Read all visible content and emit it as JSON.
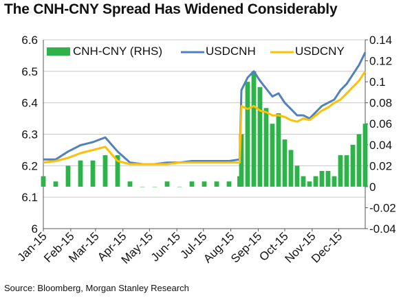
{
  "title": "The CNH-CNY Spread Has Widened Considerably",
  "source": "Source: Bloomberg, Morgan Stanley Research",
  "colors": {
    "background": "#ffffff",
    "gridline": "#c8c8c8",
    "axis": "#555555",
    "text": "#111111",
    "usdcnh": "#4f81bd",
    "usdcny": "#ffc000",
    "spread": "#2db34a"
  },
  "chart_data": {
    "type": "line",
    "title": "The CNH-CNY Spread Has Widened Considerably",
    "grid": true,
    "legend_position": "top",
    "x_tick_labels": [
      "Jan-15",
      "Feb-15",
      "Mar-15",
      "Apr-15",
      "May-15",
      "Jun-15",
      "Jul-15",
      "Aug-15",
      "Sep-15",
      "Oct-15",
      "Nov-15",
      "Dec-15"
    ],
    "y_left": {
      "min": 6.0,
      "max": 6.6,
      "ticks": [
        "6.6",
        "6.5",
        "6.4",
        "6.3",
        "6.2",
        "6.1",
        "6"
      ]
    },
    "y_right": {
      "min": -0.04,
      "max": 0.14,
      "ticks": [
        "0.14",
        "0.12",
        "0.1",
        "0.08",
        "0.06",
        "0.04",
        "0.02",
        "0",
        "-0.02",
        "-0.04"
      ]
    },
    "legend": [
      "CNH-CNY (RHS)",
      "USDCNH",
      "USDCNY"
    ],
    "dates": [
      "2015-01-01",
      "2015-01-15",
      "2015-01-29",
      "2015-02-12",
      "2015-02-26",
      "2015-03-12",
      "2015-03-26",
      "2015-04-09",
      "2015-04-23",
      "2015-05-07",
      "2015-05-21",
      "2015-06-04",
      "2015-06-18",
      "2015-07-02",
      "2015-07-16",
      "2015-07-30",
      "2015-08-11",
      "2015-08-13",
      "2015-08-20",
      "2015-08-27",
      "2015-09-03",
      "2015-09-10",
      "2015-09-17",
      "2015-09-24",
      "2015-10-01",
      "2015-10-08",
      "2015-10-15",
      "2015-10-22",
      "2015-10-29",
      "2015-11-05",
      "2015-11-12",
      "2015-11-19",
      "2015-11-26",
      "2015-12-03",
      "2015-12-10",
      "2015-12-17",
      "2015-12-24",
      "2015-12-31"
    ],
    "series": [
      {
        "name": "USDCNH",
        "axis": "left",
        "values": [
          6.22,
          6.22,
          6.245,
          6.265,
          6.275,
          6.29,
          6.245,
          6.21,
          6.205,
          6.205,
          6.21,
          6.21,
          6.215,
          6.215,
          6.215,
          6.215,
          6.22,
          6.44,
          6.48,
          6.5,
          6.47,
          6.445,
          6.42,
          6.43,
          6.4,
          6.38,
          6.36,
          6.36,
          6.35,
          6.37,
          6.39,
          6.4,
          6.41,
          6.44,
          6.46,
          6.49,
          6.52,
          6.56
        ]
      },
      {
        "name": "USDCNY",
        "axis": "left",
        "values": [
          6.21,
          6.215,
          6.225,
          6.24,
          6.25,
          6.26,
          6.215,
          6.205,
          6.205,
          6.205,
          6.205,
          6.21,
          6.21,
          6.21,
          6.21,
          6.21,
          6.21,
          6.39,
          6.38,
          6.39,
          6.375,
          6.37,
          6.36,
          6.36,
          6.355,
          6.345,
          6.34,
          6.35,
          6.345,
          6.36,
          6.375,
          6.385,
          6.4,
          6.41,
          6.43,
          6.45,
          6.47,
          6.5
        ]
      },
      {
        "name": "CNH-CNY (RHS)",
        "axis": "right",
        "values": [
          0.01,
          0.005,
          0.02,
          0.025,
          0.025,
          0.03,
          0.03,
          0.005,
          0.0,
          0.0,
          0.005,
          0.0,
          0.005,
          0.005,
          0.005,
          0.005,
          0.01,
          0.05,
          0.1,
          0.11,
          0.095,
          0.075,
          0.06,
          0.07,
          0.045,
          0.035,
          0.02,
          0.01,
          0.005,
          0.01,
          0.015,
          0.015,
          0.01,
          0.03,
          0.03,
          0.04,
          0.05,
          0.06
        ]
      }
    ]
  }
}
